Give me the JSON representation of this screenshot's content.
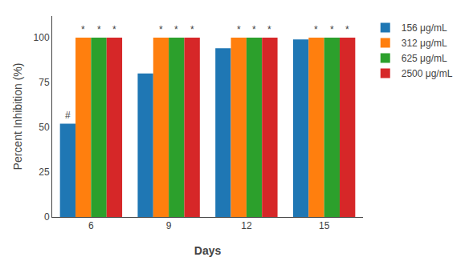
{
  "chart_data": {
    "type": "bar",
    "categories": [
      "6",
      "9",
      "12",
      "15"
    ],
    "series": [
      {
        "name": "156 μg/mL",
        "values": [
          52,
          80,
          94,
          99
        ]
      },
      {
        "name": "312 μg/mL",
        "values": [
          100,
          100,
          100,
          100
        ]
      },
      {
        "name": "625 μg/mL",
        "values": [
          100,
          100,
          100,
          100
        ]
      },
      {
        "name": "2500 μg/mL",
        "values": [
          100,
          100,
          100,
          100
        ]
      }
    ],
    "xlabel": "Days",
    "ylabel": "Percent Inhibition (%)",
    "ylim": [
      0,
      112
    ],
    "yticks": [
      0,
      25,
      50,
      75,
      100
    ],
    "grid": false,
    "legend": "right",
    "annotations": [
      {
        "text": "#",
        "category": "6",
        "series": "156 μg/mL"
      },
      {
        "text": "*",
        "category": "6",
        "series": "312 μg/mL"
      },
      {
        "text": "*",
        "category": "6",
        "series": "625 μg/mL"
      },
      {
        "text": "*",
        "category": "6",
        "series": "2500 μg/mL"
      },
      {
        "text": "*",
        "category": "9",
        "series": "312 μg/mL"
      },
      {
        "text": "*",
        "category": "9",
        "series": "625 μg/mL"
      },
      {
        "text": "*",
        "category": "9",
        "series": "2500 μg/mL"
      },
      {
        "text": "*",
        "category": "12",
        "series": "312 μg/mL"
      },
      {
        "text": "*",
        "category": "12",
        "series": "625 μg/mL"
      },
      {
        "text": "*",
        "category": "12",
        "series": "2500 μg/mL"
      },
      {
        "text": "*",
        "category": "15",
        "series": "312 μg/mL"
      },
      {
        "text": "*",
        "category": "15",
        "series": "625 μg/mL"
      },
      {
        "text": "*",
        "category": "15",
        "series": "2500 μg/mL"
      }
    ]
  }
}
